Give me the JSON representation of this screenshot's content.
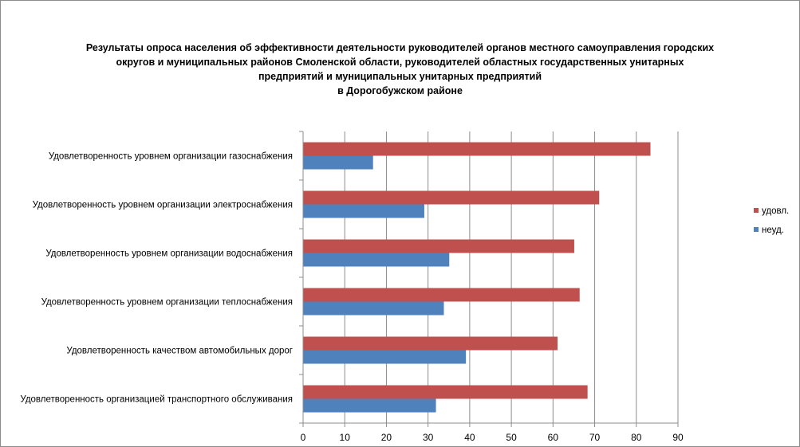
{
  "chart_data": {
    "type": "bar",
    "orientation": "horizontal",
    "title_lines": [
      "Результаты опроса населения об эффективности деятельности руководителей органов местного самоуправления городских",
      "округов и муниципальных районов Смоленской области, руководителей областных государственных унитарных",
      "предприятий и муниципальных унитарных предприятий",
      "в Дорогобужском районе"
    ],
    "categories": [
      "Удовлетворенность  уровнем  организации газоснабжения",
      "Удовлетворенность  уровнем организации электроснабжения",
      "Удовлетворенность  уровнем  организации водоснабжения",
      "Удовлетворенность  уровнем  организации теплоснабжения",
      "Удовлетворенность  качеством  автомобильных дорог",
      "Удовлетворенность  организацией транспортного обслуживания"
    ],
    "series": [
      {
        "name": "удовл.",
        "color": "#c0504d",
        "values": [
          83.3,
          71.0,
          65.0,
          66.3,
          61.0,
          68.2
        ]
      },
      {
        "name": "неуд.",
        "color": "#4f81bd",
        "values": [
          16.7,
          29.0,
          35.0,
          33.7,
          39.0,
          31.8
        ]
      }
    ],
    "xlim": [
      0,
      90
    ],
    "xticks": [
      "0",
      "10",
      "20",
      "30",
      "40",
      "50",
      "60",
      "70",
      "80",
      "90"
    ],
    "grid": true,
    "legend_position": "right"
  }
}
